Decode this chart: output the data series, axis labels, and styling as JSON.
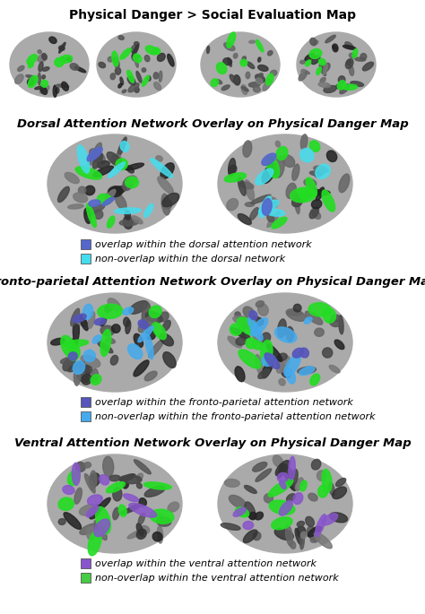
{
  "title1": "Physical Danger > Social Evaluation Map",
  "title2": "Dorsal Attention Network Overlay on Physical Danger Map",
  "title3": "Fronto-parietal Attention Network Overlay on Physical Danger Map",
  "title4": "Ventral Attention Network Overlay on Physical Danger Map",
  "legend1": [
    {
      "color": "#5566cc",
      "label": "overlap within the dorsal attention network"
    },
    {
      "color": "#44ddee",
      "label": "non-overlap within the dorsal network"
    }
  ],
  "legend2": [
    {
      "color": "#5555bb",
      "label": "overlap within the fronto-parietal attention network"
    },
    {
      "color": "#44aaee",
      "label": "non-overlap within the fronto-parietal attention network"
    }
  ],
  "legend3": [
    {
      "color": "#8855cc",
      "label": "overlap within the ventral attention network"
    },
    {
      "color": "#44cc44",
      "label": "non-overlap within the ventral attention network"
    }
  ],
  "bg_color": "#ffffff",
  "title1_fontsize": 10,
  "title2_fontsize": 9.5,
  "title3_fontsize": 9.5,
  "title4_fontsize": 9.5,
  "legend_fontsize": 8
}
